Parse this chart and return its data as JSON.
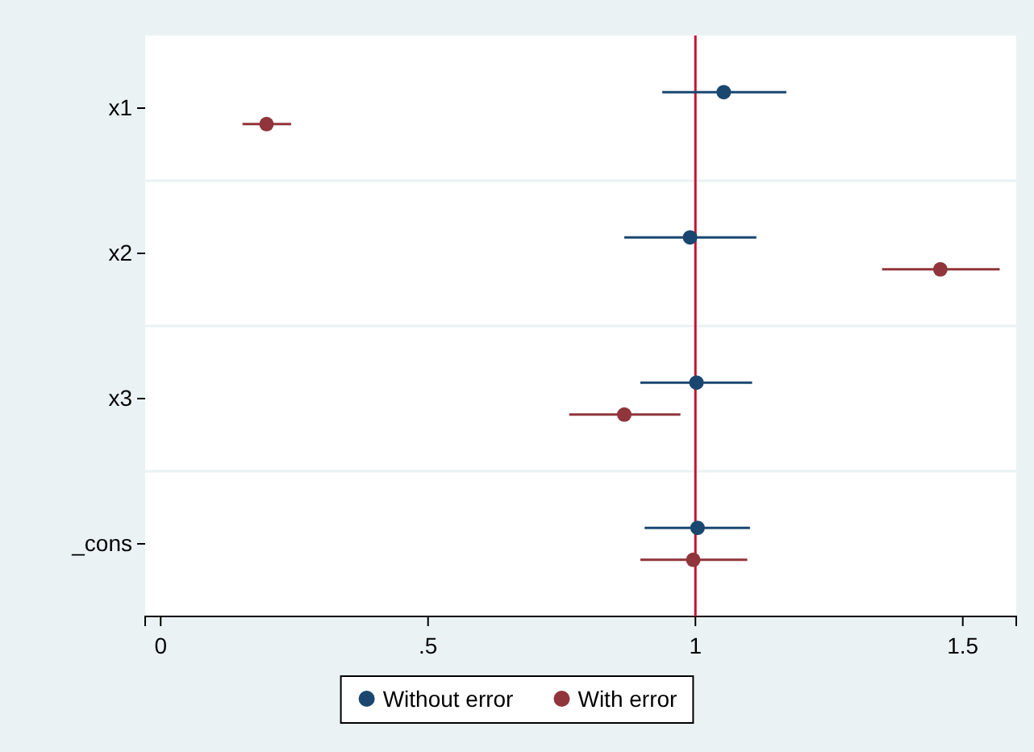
{
  "chart_data": {
    "type": "scatter",
    "orientation": "horizontal",
    "categories": [
      "x1",
      "x2",
      "x3",
      "_cons"
    ],
    "series": [
      {
        "name": "Without error",
        "color": "#1a476f",
        "values": [
          1.053,
          0.99,
          1.002,
          1.004
        ],
        "errors": [
          [
            0.938,
            1.17
          ],
          [
            0.867,
            1.114
          ],
          [
            0.897,
            1.106
          ],
          [
            0.905,
            1.102
          ]
        ]
      },
      {
        "name": "With error",
        "color": "#90353b",
        "values": [
          0.198,
          1.458,
          0.867,
          0.996
        ],
        "errors": [
          [
            0.153,
            0.244
          ],
          [
            1.349,
            1.569
          ],
          [
            0.764,
            0.972
          ],
          [
            0.897,
            1.097
          ]
        ]
      }
    ],
    "xlim": [
      -0.029,
      1.6
    ],
    "xticks": [
      0,
      {
        "value": 0.5,
        "label": ".5"
      },
      1,
      1.5
    ],
    "ref_lines": [
      {
        "axis": "x",
        "value": 1,
        "color": "#c8102e"
      }
    ],
    "grid": "y",
    "legend": "bottom",
    "marker": "circle"
  }
}
